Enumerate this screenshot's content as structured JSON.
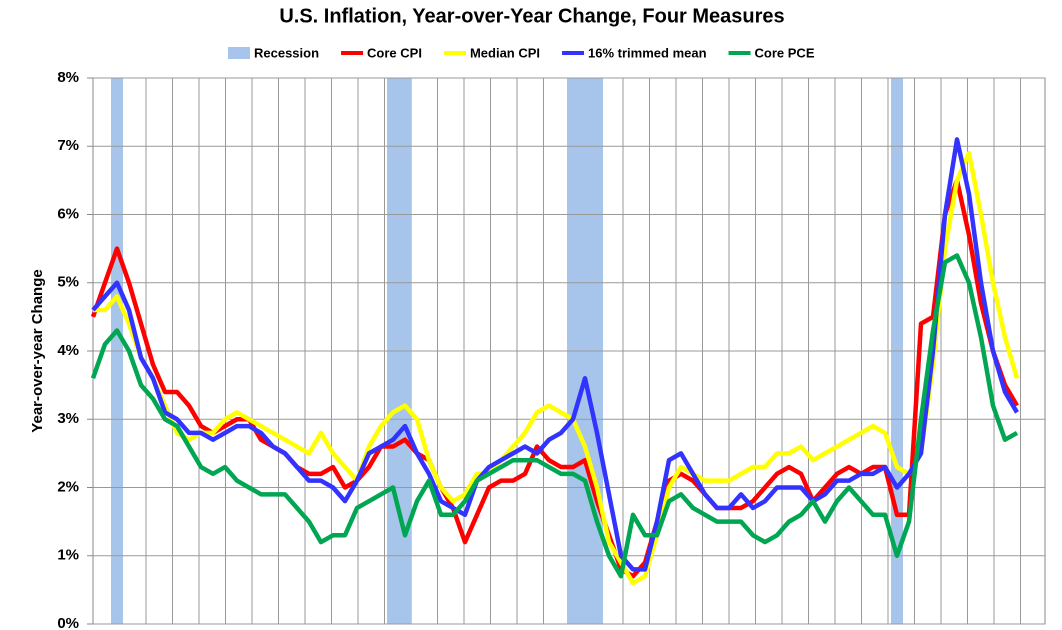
{
  "chart_data": {
    "type": "line",
    "title": "U.S. Inflation, Year-over-Year Change, Four Measures",
    "y_axis_label": "Year-over-year Change",
    "ylim": [
      0,
      8
    ],
    "yticks": [
      {
        "value": 0,
        "label": "0%"
      },
      {
        "value": 1,
        "label": "1%"
      },
      {
        "value": 2,
        "label": "2%"
      },
      {
        "value": 3,
        "label": "3%"
      },
      {
        "value": 4,
        "label": "4%"
      },
      {
        "value": 5,
        "label": "5%"
      },
      {
        "value": 6,
        "label": "6%"
      },
      {
        "value": 7,
        "label": "7%"
      },
      {
        "value": 8,
        "label": "8%"
      }
    ],
    "grid": true,
    "series": [
      {
        "name": "Recession",
        "type": "bar",
        "color": "#a7c5ea",
        "values": [
          null,
          null,
          8,
          null,
          null,
          null,
          null,
          null,
          null,
          null,
          null,
          null,
          null,
          null,
          null,
          null,
          null,
          null,
          null,
          null,
          null,
          null,
          null,
          null,
          null,
          8,
          8,
          null,
          null,
          null,
          null,
          null,
          null,
          null,
          null,
          null,
          null,
          null,
          null,
          null,
          8,
          8,
          8,
          null,
          null,
          null,
          null,
          null,
          null,
          null,
          null,
          null,
          null,
          null,
          null,
          null,
          null,
          null,
          null,
          null,
          null,
          null,
          null,
          null,
          null,
          null,
          null,
          8,
          null,
          null,
          null,
          null,
          null,
          null,
          null,
          null,
          null,
          null
        ]
      },
      {
        "name": "Core CPI",
        "color": "#ff0000",
        "values": [
          4.5,
          5.0,
          5.5,
          5.0,
          4.4,
          3.8,
          3.4,
          3.4,
          3.2,
          2.9,
          2.8,
          2.9,
          3.0,
          3.0,
          2.7,
          2.6,
          2.5,
          2.3,
          2.2,
          2.2,
          2.3,
          2.0,
          2.1,
          2.3,
          2.6,
          2.6,
          2.7,
          2.5,
          2.4,
          2.0,
          1.7,
          1.2,
          1.6,
          2.0,
          2.1,
          2.1,
          2.2,
          2.6,
          2.4,
          2.3,
          2.3,
          2.4,
          1.8,
          1.3,
          0.8,
          0.7,
          0.9,
          1.5,
          2.1,
          2.2,
          2.1,
          1.9,
          1.7,
          1.7,
          1.7,
          1.8,
          2.0,
          2.2,
          2.3,
          2.2,
          1.8,
          2.0,
          2.2,
          2.3,
          2.2,
          2.3,
          2.3,
          1.6,
          1.6,
          4.4,
          4.5,
          6.0,
          6.5,
          5.7,
          4.7,
          4.0,
          3.5,
          3.2
        ]
      },
      {
        "name": "Median CPI",
        "color": "#ffff00",
        "values": [
          4.6,
          4.6,
          4.8,
          4.4,
          3.9,
          3.6,
          3.2,
          2.8,
          2.7,
          2.8,
          2.8,
          3.0,
          3.1,
          3.0,
          2.9,
          2.8,
          2.7,
          2.6,
          2.5,
          2.8,
          2.5,
          2.3,
          2.1,
          2.6,
          2.9,
          3.1,
          3.2,
          3.0,
          2.4,
          2.0,
          1.8,
          1.9,
          2.2,
          2.2,
          2.4,
          2.6,
          2.8,
          3.1,
          3.2,
          3.1,
          3.0,
          2.6,
          2.0,
          1.2,
          0.9,
          0.6,
          0.7,
          1.3,
          2.0,
          2.3,
          2.2,
          2.1,
          2.1,
          2.1,
          2.2,
          2.3,
          2.3,
          2.5,
          2.5,
          2.6,
          2.4,
          2.5,
          2.6,
          2.7,
          2.8,
          2.9,
          2.8,
          2.3,
          2.2,
          2.5,
          3.8,
          5.5,
          6.5,
          6.9,
          6.0,
          5.0,
          4.2,
          3.6
        ]
      },
      {
        "name": "16% trimmed mean",
        "color": "#3333ff",
        "values": [
          4.6,
          4.8,
          5.0,
          4.6,
          3.9,
          3.6,
          3.1,
          3.0,
          2.8,
          2.8,
          2.7,
          2.8,
          2.9,
          2.9,
          2.8,
          2.6,
          2.5,
          2.3,
          2.1,
          2.1,
          2.0,
          1.8,
          2.1,
          2.5,
          2.6,
          2.7,
          2.9,
          2.5,
          2.2,
          1.8,
          1.7,
          1.6,
          2.1,
          2.3,
          2.4,
          2.5,
          2.6,
          2.5,
          2.7,
          2.8,
          3.0,
          3.6,
          2.8,
          1.9,
          1.0,
          0.8,
          0.8,
          1.5,
          2.4,
          2.5,
          2.2,
          1.9,
          1.7,
          1.7,
          1.9,
          1.7,
          1.8,
          2.0,
          2.0,
          2.0,
          1.8,
          1.9,
          2.1,
          2.1,
          2.2,
          2.2,
          2.3,
          2.0,
          2.2,
          2.5,
          4.0,
          6.0,
          7.1,
          6.3,
          5.0,
          4.0,
          3.4,
          3.1
        ]
      },
      {
        "name": "Core PCE",
        "color": "#00a651",
        "values": [
          3.6,
          4.1,
          4.3,
          4.0,
          3.5,
          3.3,
          3.0,
          2.9,
          2.6,
          2.3,
          2.2,
          2.3,
          2.1,
          2.0,
          1.9,
          1.9,
          1.9,
          1.7,
          1.5,
          1.2,
          1.3,
          1.3,
          1.7,
          1.8,
          1.9,
          2.0,
          1.3,
          1.8,
          2.1,
          1.6,
          1.6,
          1.8,
          2.1,
          2.2,
          2.3,
          2.4,
          2.4,
          2.4,
          2.3,
          2.2,
          2.2,
          2.1,
          1.5,
          1.0,
          0.7,
          1.6,
          1.3,
          1.3,
          1.8,
          1.9,
          1.7,
          1.6,
          1.5,
          1.5,
          1.5,
          1.3,
          1.2,
          1.3,
          1.5,
          1.6,
          1.8,
          1.5,
          1.8,
          2.0,
          1.8,
          1.6,
          1.6,
          1.0,
          1.5,
          3.0,
          4.3,
          5.3,
          5.4,
          5.0,
          4.2,
          3.2,
          2.7,
          2.8
        ]
      }
    ]
  }
}
